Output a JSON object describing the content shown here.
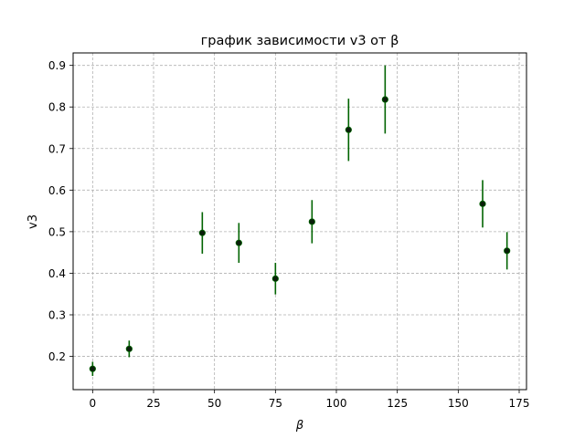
{
  "chart_data": {
    "type": "scatter",
    "title": "график зависимости v3 от β",
    "xlabel": "β",
    "ylabel": "v3",
    "xlim": [
      -8,
      178
    ],
    "ylim": [
      0.12,
      0.93
    ],
    "x_ticks": [
      0,
      25,
      50,
      75,
      100,
      125,
      150,
      175
    ],
    "y_ticks": [
      0.2,
      0.3,
      0.4,
      0.5,
      0.6,
      0.7,
      0.8,
      0.9
    ],
    "grid": true,
    "legend": "none",
    "colors": {
      "marker": "#0a1f0a",
      "error_bar": "#006400"
    },
    "series": [
      {
        "x": [
          0,
          15,
          45,
          60,
          75,
          90,
          105,
          120,
          160,
          170
        ],
        "y": [
          0.17,
          0.218,
          0.497,
          0.473,
          0.387,
          0.524,
          0.745,
          0.818,
          0.567,
          0.454
        ],
        "yerr": [
          0.017,
          0.02,
          0.05,
          0.048,
          0.038,
          0.052,
          0.075,
          0.082,
          0.057,
          0.045
        ]
      }
    ]
  }
}
